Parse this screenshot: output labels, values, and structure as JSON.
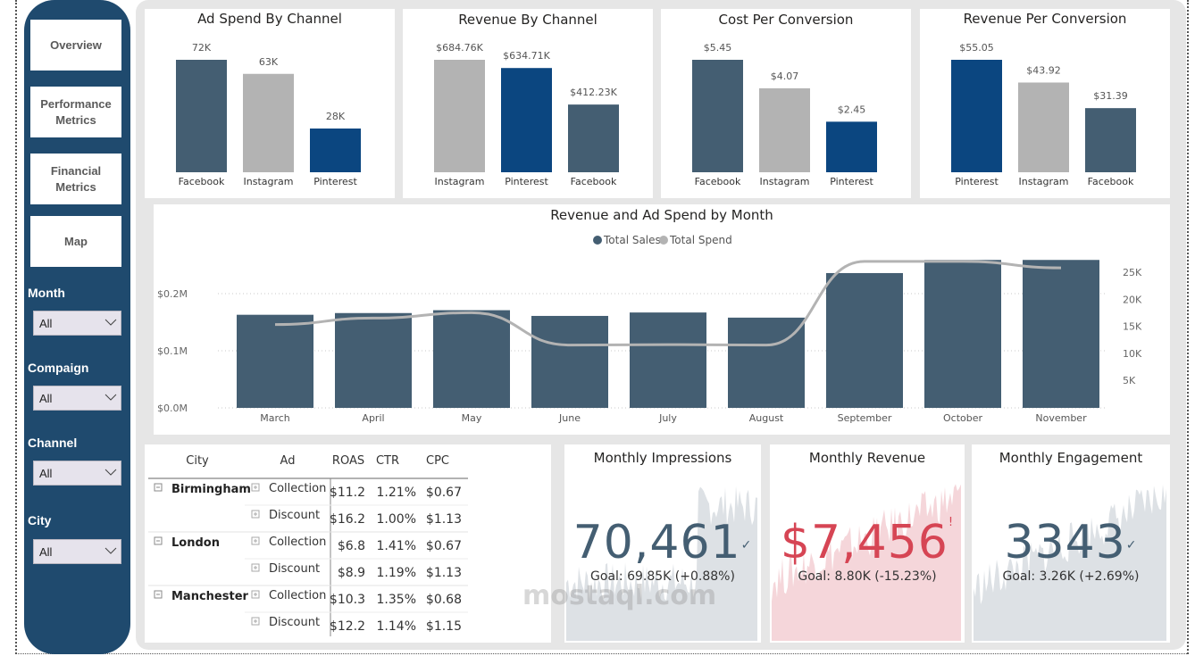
{
  "sidebar": {
    "nav": [
      {
        "label": "Overview"
      },
      {
        "label": "Performance Metrics"
      },
      {
        "label": "Financial Metrics"
      },
      {
        "label": "Map"
      }
    ],
    "filters": [
      {
        "label": "Month",
        "value": "All"
      },
      {
        "label": "Compaign",
        "value": "All"
      },
      {
        "label": "Channel",
        "value": "All"
      },
      {
        "label": "City",
        "value": "All"
      }
    ]
  },
  "colors": {
    "sidebar": "#1f4a6e",
    "facebook": "#445e72",
    "instagram": "#b3b3b3",
    "pinterest": "#0b4680",
    "sales": "#445e72",
    "spend": "#b3b3b3",
    "kpi_good": "#445e72",
    "kpi_bad": "#d64554"
  },
  "chart_data": [
    {
      "type": "bar",
      "title": "Ad Spend By Channel",
      "categories": [
        "Facebook",
        "Instagram",
        "Pinterest"
      ],
      "values": [
        72,
        63,
        28
      ],
      "labels": [
        "72K",
        "63K",
        "28K"
      ],
      "colors": [
        "#445e72",
        "#b3b3b3",
        "#0b4680"
      ],
      "unit": "K"
    },
    {
      "type": "bar",
      "title": "Revenue By Channel",
      "categories": [
        "Instagram",
        "Pinterest",
        "Facebook"
      ],
      "values": [
        684.76,
        634.71,
        412.23
      ],
      "labels": [
        "$684.76K",
        "$634.71K",
        "$412.23K"
      ],
      "colors": [
        "#b3b3b3",
        "#0b4680",
        "#445e72"
      ],
      "unit": "$K"
    },
    {
      "type": "bar",
      "title": "Cost Per Conversion",
      "categories": [
        "Facebook",
        "Instagram",
        "Pinterest"
      ],
      "values": [
        5.45,
        4.07,
        2.45
      ],
      "labels": [
        "$5.45",
        "$4.07",
        "$2.45"
      ],
      "colors": [
        "#445e72",
        "#b3b3b3",
        "#0b4680"
      ],
      "unit": "$"
    },
    {
      "type": "bar",
      "title": "Revenue Per Conversion",
      "categories": [
        "Pinterest",
        "Instagram",
        "Facebook"
      ],
      "values": [
        55.05,
        43.92,
        31.39
      ],
      "labels": [
        "$55.05",
        "$43.92",
        "$31.39"
      ],
      "colors": [
        "#0b4680",
        "#b3b3b3",
        "#445e72"
      ],
      "unit": "$"
    },
    {
      "type": "bar",
      "title": "Revenue and Ad Spend by Month",
      "legend": [
        "Total Sales",
        "Total Spend"
      ],
      "legend_position": "top-center",
      "categories": [
        "March",
        "April",
        "May",
        "June",
        "July",
        "August",
        "September",
        "October",
        "November"
      ],
      "series": [
        {
          "name": "Total Sales",
          "type": "bar",
          "axis": "left",
          "values": [
            0.163,
            0.166,
            0.171,
            0.161,
            0.167,
            0.158,
            0.236,
            0.259,
            0.259
          ]
        },
        {
          "name": "Total Spend",
          "type": "line",
          "axis": "right",
          "values": [
            15300,
            16500,
            17500,
            11500,
            11600,
            11500,
            27000,
            27000,
            25800
          ]
        }
      ],
      "y_left": {
        "ticks": [
          "$0.0M",
          "$0.1M",
          "$0.2M"
        ],
        "values": [
          0,
          0.1,
          0.2
        ],
        "range": [
          0,
          0.3
        ]
      },
      "y_right": {
        "ticks": [
          "5K",
          "10K",
          "15K",
          "20K",
          "25K"
        ],
        "values": [
          5000,
          10000,
          15000,
          20000,
          25000
        ]
      },
      "grid": true
    }
  ],
  "table": {
    "headers": [
      "City",
      "Ad",
      "ROAS",
      "CTR",
      "CPC"
    ],
    "groups": [
      {
        "city": "Birmingham",
        "rows": [
          {
            "ad": "Collection",
            "roas": "$11.2",
            "ctr": "1.21%",
            "cpc": "$0.67"
          },
          {
            "ad": "Discount",
            "roas": "$16.2",
            "ctr": "1.00%",
            "cpc": "$1.13"
          }
        ]
      },
      {
        "city": "London",
        "rows": [
          {
            "ad": "Collection",
            "roas": "$6.8",
            "ctr": "1.41%",
            "cpc": "$0.67"
          },
          {
            "ad": "Discount",
            "roas": "$8.9",
            "ctr": "1.19%",
            "cpc": "$1.13"
          }
        ]
      },
      {
        "city": "Manchester",
        "rows": [
          {
            "ad": "Collection",
            "roas": "$10.3",
            "ctr": "1.35%",
            "cpc": "$0.68"
          },
          {
            "ad": "Discount",
            "roas": "$12.2",
            "ctr": "1.14%",
            "cpc": "$1.15"
          }
        ]
      }
    ]
  },
  "kpis": [
    {
      "title": "Monthly Impressions",
      "value": "70,461",
      "status_icon": "check-icon",
      "status_glyph": "✓",
      "goal": "Goal: 69.85K (+0.88%)",
      "status": "good"
    },
    {
      "title": "Monthly Revenue",
      "value": "$7,456",
      "status_icon": "alert-icon",
      "status_glyph": "!",
      "goal": "Goal: 8.80K (-15.23%)",
      "status": "bad"
    },
    {
      "title": "Monthly Engagement",
      "value": "3343",
      "status_icon": "check-icon",
      "status_glyph": "✓",
      "goal": "Goal: 3.26K (+2.69%)",
      "status": "good"
    }
  ],
  "watermark": "mostaql.com"
}
